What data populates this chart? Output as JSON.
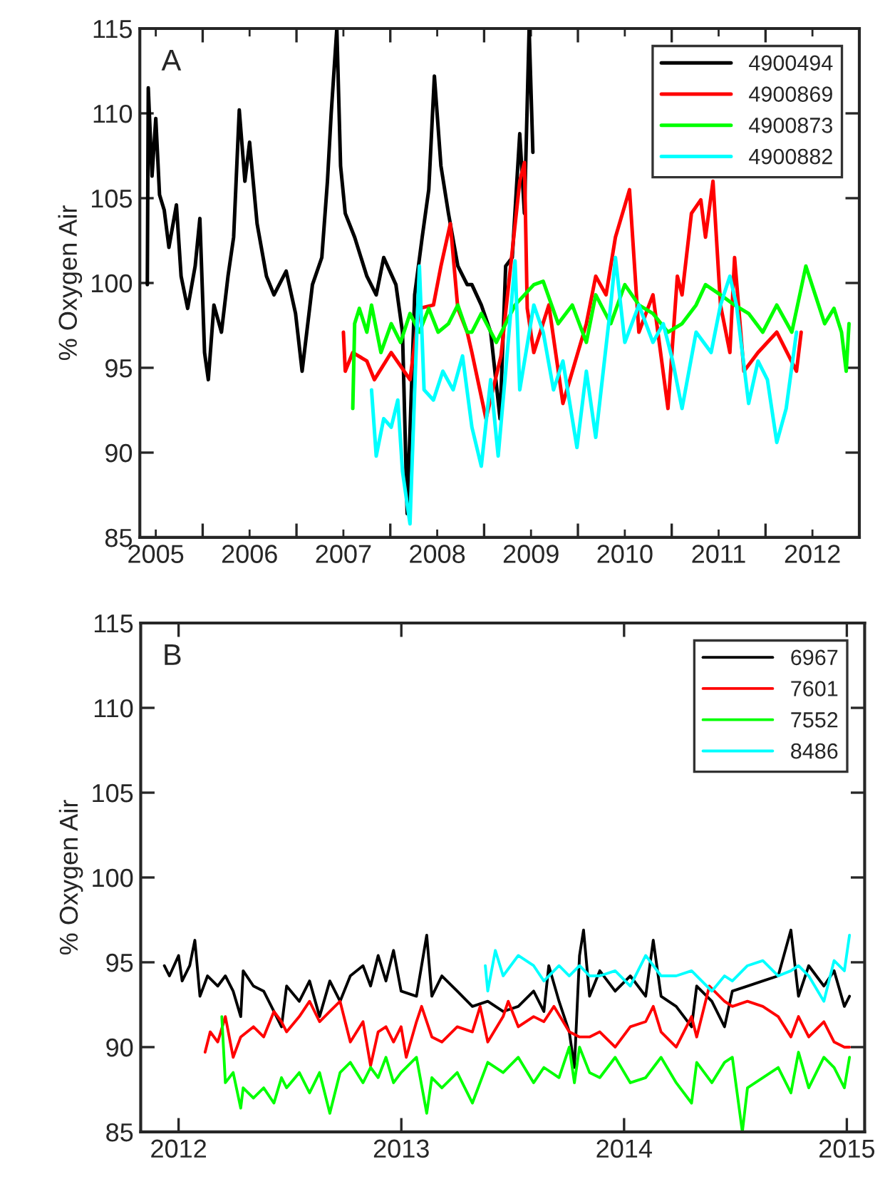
{
  "chart_data": [
    {
      "type": "line",
      "ylabel": "% Oxygen Air",
      "annotations": [
        "A"
      ],
      "legend": "top right",
      "xlim": [
        2005.33,
        2013.0
      ],
      "ylim": [
        85,
        115
      ],
      "yticks": [
        85,
        90,
        95,
        100,
        105,
        110,
        115
      ],
      "xticks": [
        {
          "value": 2005.5,
          "label": "2005"
        },
        {
          "value": 2006,
          "label": null
        },
        {
          "value": 2006.5,
          "label": "2006"
        },
        {
          "value": 2007,
          "label": null
        },
        {
          "value": 2007.5,
          "label": "2007"
        },
        {
          "value": 2008,
          "label": null
        },
        {
          "value": 2008.5,
          "label": "2008"
        },
        {
          "value": 2009,
          "label": null
        },
        {
          "value": 2009.5,
          "label": "2009"
        },
        {
          "value": 2010,
          "label": null
        },
        {
          "value": 2010.5,
          "label": "2010"
        },
        {
          "value": 2011,
          "label": null
        },
        {
          "value": 2011.5,
          "label": "2011"
        },
        {
          "value": 2012,
          "label": null
        },
        {
          "value": 2012.5,
          "label": "2012"
        }
      ],
      "series": [
        {
          "name": "4900494",
          "color": "#000000",
          "x": [
            2005.41,
            2005.42,
            2005.46,
            2005.5,
            2005.54,
            2005.59,
            2005.64,
            2005.72,
            2005.77,
            2005.84,
            2005.92,
            2005.97,
            2006.02,
            2006.06,
            2006.12,
            2006.2,
            2006.27,
            2006.33,
            2006.39,
            2006.45,
            2006.5,
            2006.58,
            2006.68,
            2006.76,
            2006.89,
            2006.99,
            2007.06,
            2007.17,
            2007.27,
            2007.33,
            2007.37,
            2007.43,
            2007.47,
            2007.52,
            2007.62,
            2007.75,
            2007.85,
            2007.93,
            2008.06,
            2008.13,
            2008.18,
            2008.26,
            2008.34,
            2008.41,
            2008.47,
            2008.54,
            2008.62,
            2008.72,
            2008.82,
            2008.87,
            2008.97,
            2009.07,
            2009.17,
            2009.23,
            2009.3,
            2009.38,
            2009.43,
            2009.48,
            2009.52
          ],
          "values": [
            99.9,
            111.5,
            106.3,
            109.7,
            105.2,
            104.3,
            102.1,
            104.6,
            100.4,
            98.5,
            101.0,
            103.8,
            95.9,
            94.3,
            98.7,
            97.1,
            100.4,
            102.7,
            110.2,
            106.0,
            108.3,
            103.5,
            100.4,
            99.3,
            100.7,
            98.2,
            94.8,
            99.9,
            101.5,
            106.0,
            110.0,
            115.0,
            106.9,
            104.1,
            102.7,
            100.4,
            99.3,
            101.5,
            99.9,
            97.1,
            86.4,
            99.3,
            102.7,
            105.5,
            112.2,
            106.9,
            104.1,
            101.0,
            99.9,
            99.9,
            98.7,
            97.1,
            92.0,
            101.0,
            101.5,
            108.8,
            104.1,
            115.0,
            107.7
          ]
        },
        {
          "name": "4900869",
          "color": "#ff0000",
          "x": [
            2007.5,
            2007.52,
            2007.6,
            2007.75,
            2007.83,
            2008.01,
            2008.21,
            2008.31,
            2008.46,
            2008.54,
            2008.64,
            2008.72,
            2008.82,
            2008.87,
            2009.02,
            2009.18,
            2009.38,
            2009.43,
            2009.46,
            2009.53,
            2009.69,
            2009.84,
            2010.09,
            2010.19,
            2010.3,
            2010.4,
            2010.55,
            2010.65,
            2010.8,
            2010.96,
            2011.06,
            2011.11,
            2011.21,
            2011.31,
            2011.36,
            2011.44,
            2011.52,
            2011.62,
            2011.67,
            2011.77,
            2011.92,
            2012.12,
            2012.33,
            2012.38
          ],
          "values": [
            97.1,
            94.8,
            95.9,
            95.4,
            94.3,
            95.9,
            94.3,
            98.5,
            98.7,
            101.0,
            103.5,
            98.5,
            97.1,
            95.9,
            92.0,
            95.7,
            106.0,
            107.1,
            98.5,
            95.9,
            98.7,
            92.9,
            97.6,
            100.4,
            99.3,
            102.7,
            105.5,
            97.1,
            99.3,
            92.6,
            100.4,
            99.3,
            104.1,
            104.9,
            102.7,
            106.0,
            98.7,
            95.9,
            101.5,
            94.8,
            95.9,
            97.1,
            94.8,
            97.1
          ]
        },
        {
          "name": "4900873",
          "color": "#00ff00",
          "x": [
            2007.6,
            2007.62,
            2007.67,
            2007.75,
            2007.8,
            2007.9,
            2008.01,
            2008.11,
            2008.21,
            2008.31,
            2008.41,
            2008.51,
            2008.62,
            2008.72,
            2008.82,
            2008.87,
            2008.97,
            2009.13,
            2009.33,
            2009.53,
            2009.63,
            2009.79,
            2009.94,
            2010.09,
            2010.19,
            2010.35,
            2010.5,
            2010.65,
            2010.8,
            2010.96,
            2011.11,
            2011.26,
            2011.36,
            2011.52,
            2011.67,
            2011.82,
            2011.97,
            2012.12,
            2012.28,
            2012.43,
            2012.53,
            2012.63,
            2012.73,
            2012.81,
            2012.86,
            2012.89
          ],
          "values": [
            92.6,
            97.6,
            98.5,
            97.1,
            98.7,
            95.9,
            97.6,
            96.5,
            98.2,
            97.1,
            98.5,
            97.1,
            97.6,
            98.7,
            97.1,
            97.1,
            98.2,
            96.5,
            98.7,
            99.9,
            100.1,
            97.6,
            98.7,
            96.5,
            99.3,
            97.6,
            99.9,
            98.7,
            98.2,
            97.1,
            97.6,
            98.7,
            99.9,
            99.3,
            98.7,
            98.2,
            97.1,
            98.7,
            97.1,
            101.0,
            99.3,
            97.6,
            98.5,
            97.1,
            94.8,
            97.6
          ]
        },
        {
          "name": "4900882",
          "color": "#00ffff",
          "x": [
            2007.8,
            2007.85,
            2007.93,
            2008.01,
            2008.08,
            2008.13,
            2008.21,
            2008.26,
            2008.31,
            2008.36,
            2008.46,
            2008.56,
            2008.67,
            2008.77,
            2008.87,
            2008.97,
            2009.07,
            2009.15,
            2009.23,
            2009.33,
            2009.38,
            2009.53,
            2009.63,
            2009.74,
            2009.84,
            2009.99,
            2010.09,
            2010.19,
            2010.35,
            2010.4,
            2010.5,
            2010.65,
            2010.8,
            2010.91,
            2011.01,
            2011.11,
            2011.26,
            2011.42,
            2011.52,
            2011.62,
            2011.69,
            2011.82,
            2011.92,
            2012.02,
            2012.12,
            2012.22,
            2012.33
          ],
          "values": [
            93.7,
            89.8,
            92.0,
            91.5,
            93.1,
            88.9,
            85.8,
            93.7,
            101.0,
            93.7,
            93.1,
            94.8,
            93.7,
            95.7,
            91.5,
            89.2,
            94.3,
            89.8,
            94.8,
            101.3,
            93.7,
            98.7,
            97.1,
            93.7,
            95.4,
            90.3,
            94.8,
            90.9,
            98.7,
            101.5,
            96.5,
            98.7,
            96.5,
            97.6,
            95.4,
            92.6,
            97.1,
            95.9,
            98.7,
            100.4,
            98.7,
            92.9,
            95.4,
            94.3,
            90.6,
            92.6,
            97.1
          ]
        }
      ]
    },
    {
      "type": "line",
      "ylabel": "% Oxygen Air",
      "annotations": [
        "B"
      ],
      "legend": "top right",
      "xlim": [
        2011.83,
        2015.08
      ],
      "ylim": [
        85,
        115
      ],
      "yticks": [
        85,
        90,
        95,
        100,
        105,
        110,
        115
      ],
      "xticks": [
        2012,
        2013,
        2014,
        2015
      ],
      "series": [
        {
          "name": "6967",
          "color": "#000000",
          "x": [
            2011.936,
            2011.959,
            2012.0,
            2012.016,
            2012.05,
            2012.073,
            2012.096,
            2012.13,
            2012.176,
            2012.21,
            2012.245,
            2012.279,
            2012.29,
            2012.336,
            2012.382,
            2012.428,
            2012.462,
            2012.485,
            2012.542,
            2012.588,
            2012.633,
            2012.679,
            2012.725,
            2012.771,
            2012.828,
            2012.862,
            2012.896,
            2012.931,
            2012.965,
            2012.999,
            2013.068,
            2013.114,
            2013.137,
            2013.182,
            2013.251,
            2013.319,
            2013.388,
            2013.457,
            2013.525,
            2013.594,
            2013.64,
            2013.662,
            2013.708,
            2013.754,
            2013.777,
            2013.8,
            2013.818,
            2013.845,
            2013.891,
            2013.96,
            2014.028,
            2014.097,
            2014.131,
            2014.166,
            2014.234,
            2014.303,
            2014.326,
            2014.394,
            2014.451,
            2014.486,
            2014.554,
            2014.623,
            2014.692,
            2014.749,
            2014.783,
            2014.829,
            2014.897,
            2014.943,
            2014.989,
            2015.012
          ],
          "values": [
            94.8,
            94.2,
            95.4,
            93.9,
            94.8,
            96.3,
            93.0,
            94.2,
            93.6,
            94.2,
            93.3,
            91.8,
            94.5,
            93.6,
            93.3,
            92.1,
            91.2,
            93.6,
            92.7,
            93.9,
            91.8,
            93.9,
            92.7,
            94.2,
            94.8,
            93.6,
            95.4,
            93.9,
            95.7,
            93.3,
            93.0,
            96.6,
            93.0,
            94.2,
            93.3,
            92.4,
            92.7,
            92.1,
            92.4,
            93.3,
            92.1,
            94.8,
            92.7,
            90.9,
            88.8,
            95.4,
            96.9,
            93.0,
            94.5,
            93.3,
            94.2,
            93.0,
            96.3,
            93.0,
            92.4,
            91.2,
            93.6,
            92.7,
            91.2,
            93.3,
            93.6,
            93.9,
            94.2,
            96.9,
            93.0,
            94.8,
            93.6,
            94.5,
            92.4,
            93.0
          ]
        },
        {
          "name": "7601",
          "color": "#ff0000",
          "x": [
            2012.119,
            2012.142,
            2012.176,
            2012.21,
            2012.245,
            2012.279,
            2012.336,
            2012.382,
            2012.428,
            2012.462,
            2012.485,
            2012.542,
            2012.588,
            2012.633,
            2012.679,
            2012.725,
            2012.771,
            2012.828,
            2012.862,
            2012.896,
            2012.931,
            2012.965,
            2012.999,
            2013.022,
            2013.068,
            2013.091,
            2013.137,
            2013.182,
            2013.251,
            2013.319,
            2013.354,
            2013.388,
            2013.457,
            2013.48,
            2013.525,
            2013.594,
            2013.64,
            2013.685,
            2013.754,
            2013.8,
            2013.845,
            2013.891,
            2013.96,
            2014.028,
            2014.097,
            2014.131,
            2014.166,
            2014.234,
            2014.303,
            2014.326,
            2014.383,
            2014.451,
            2014.486,
            2014.554,
            2014.623,
            2014.692,
            2014.749,
            2014.783,
            2014.829,
            2014.897,
            2014.943,
            2014.989,
            2015.012
          ],
          "values": [
            89.7,
            90.9,
            90.3,
            91.8,
            89.4,
            90.6,
            91.2,
            90.6,
            92.1,
            91.5,
            90.9,
            91.8,
            92.7,
            91.5,
            92.1,
            92.7,
            90.3,
            91.5,
            88.9,
            90.9,
            91.2,
            90.3,
            91.2,
            89.4,
            91.5,
            92.4,
            90.6,
            90.3,
            91.2,
            90.9,
            92.4,
            90.3,
            91.8,
            92.7,
            91.2,
            91.8,
            91.5,
            92.4,
            90.9,
            90.6,
            90.6,
            90.9,
            90.0,
            91.2,
            91.5,
            92.4,
            90.9,
            90.0,
            91.8,
            90.6,
            93.6,
            92.7,
            92.4,
            92.7,
            92.4,
            91.8,
            90.6,
            91.8,
            90.6,
            91.5,
            90.3,
            90.0,
            90.0
          ]
        },
        {
          "name": "7552",
          "color": "#00ff00",
          "x": [
            2012.194,
            2012.21,
            2012.245,
            2012.279,
            2012.29,
            2012.336,
            2012.382,
            2012.428,
            2012.462,
            2012.485,
            2012.542,
            2012.588,
            2012.633,
            2012.679,
            2012.725,
            2012.771,
            2012.828,
            2012.862,
            2012.896,
            2012.931,
            2012.965,
            2012.999,
            2013.068,
            2013.114,
            2013.137,
            2013.182,
            2013.251,
            2013.319,
            2013.388,
            2013.457,
            2013.525,
            2013.594,
            2013.64,
            2013.708,
            2013.754,
            2013.777,
            2013.8,
            2013.845,
            2013.891,
            2013.96,
            2014.028,
            2014.097,
            2014.166,
            2014.234,
            2014.303,
            2014.326,
            2014.394,
            2014.451,
            2014.486,
            2014.531,
            2014.554,
            2014.623,
            2014.692,
            2014.749,
            2014.783,
            2014.829,
            2014.897,
            2014.943,
            2014.989,
            2015.012
          ],
          "values": [
            91.8,
            87.9,
            88.5,
            86.4,
            87.6,
            87.0,
            87.6,
            86.7,
            88.2,
            87.6,
            88.5,
            87.3,
            88.5,
            86.1,
            88.5,
            89.1,
            87.9,
            88.8,
            88.2,
            89.4,
            87.9,
            88.5,
            89.4,
            86.1,
            88.2,
            87.6,
            88.5,
            86.7,
            89.1,
            88.5,
            89.4,
            87.9,
            88.8,
            88.2,
            90.0,
            87.9,
            90.0,
            88.5,
            88.2,
            89.4,
            87.9,
            88.2,
            89.4,
            87.9,
            86.7,
            89.1,
            87.9,
            89.1,
            89.4,
            85.0,
            87.6,
            88.2,
            88.8,
            87.3,
            89.7,
            87.6,
            89.4,
            88.8,
            87.6,
            89.4
          ]
        },
        {
          "name": "8486",
          "color": "#00ffff",
          "x": [
            2013.377,
            2013.388,
            2013.422,
            2013.457,
            2013.525,
            2013.594,
            2013.64,
            2013.708,
            2013.754,
            2013.8,
            2013.845,
            2013.891,
            2013.96,
            2014.028,
            2014.097,
            2014.166,
            2014.234,
            2014.303,
            2014.394,
            2014.451,
            2014.486,
            2014.554,
            2014.623,
            2014.692,
            2014.749,
            2014.783,
            2014.829,
            2014.897,
            2014.943,
            2014.989,
            2015.012
          ],
          "values": [
            94.8,
            93.3,
            95.7,
            94.2,
            95.4,
            94.8,
            93.9,
            94.8,
            94.2,
            94.8,
            94.2,
            94.2,
            94.5,
            93.6,
            95.4,
            94.2,
            94.2,
            94.5,
            93.3,
            94.2,
            93.9,
            94.8,
            95.1,
            94.2,
            94.5,
            94.8,
            94.2,
            92.7,
            95.1,
            94.5,
            96.6
          ]
        }
      ]
    }
  ]
}
